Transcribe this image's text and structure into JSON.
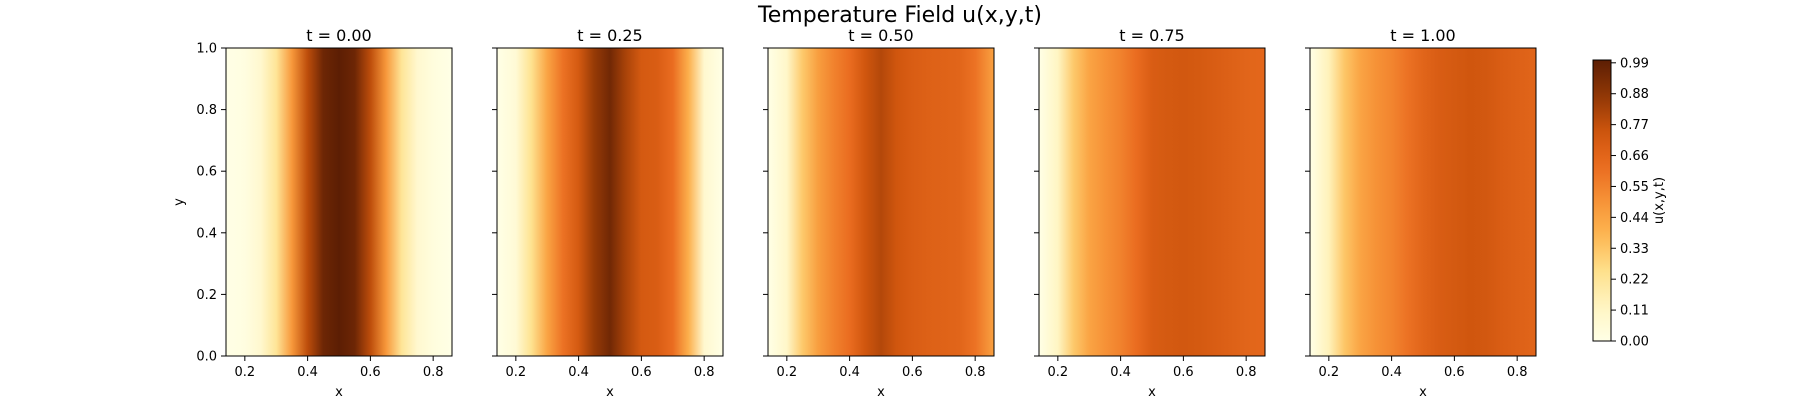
{
  "figure": {
    "title": "Temperature Field u(x,y,t)"
  },
  "chart_data": {
    "type": "heatmap",
    "title": "Temperature Field u(x,y,t)",
    "colormap": "afmhot_r (white → light yellow → orange → dark brown)",
    "x_range": [
      0.14,
      0.86
    ],
    "y_range": [
      0.0,
      1.0
    ],
    "x_ticks": [
      "0.2",
      "0.4",
      "0.6",
      "0.8"
    ],
    "y_ticks": [
      "0.0",
      "0.2",
      "0.4",
      "0.6",
      "0.8",
      "1.0"
    ],
    "xlabel": "x",
    "ylabel": "y",
    "grid": false,
    "note": "field is uniform in y; each panel lists u vs x (x_samples / u_values)",
    "x_samples": [
      0.14,
      0.2,
      0.25,
      0.3,
      0.35,
      0.4,
      0.45,
      0.5,
      0.55,
      0.6,
      0.65,
      0.7,
      0.75,
      0.8,
      0.86
    ],
    "panels": [
      {
        "title": "t = 0.00",
        "t": 0.0,
        "u_values": [
          0.0,
          0.02,
          0.08,
          0.22,
          0.48,
          0.78,
          0.96,
          1.0,
          0.96,
          0.78,
          0.48,
          0.22,
          0.08,
          0.03,
          0.0
        ]
      },
      {
        "title": "t = 0.25",
        "t": 0.25,
        "u_values": [
          0.0,
          0.06,
          0.24,
          0.44,
          0.6,
          0.72,
          0.86,
          0.95,
          0.82,
          0.72,
          0.7,
          0.62,
          0.4,
          0.08,
          0.0
        ]
      },
      {
        "title": "t = 0.50",
        "t": 0.5,
        "u_values": [
          0.0,
          0.1,
          0.32,
          0.46,
          0.55,
          0.62,
          0.74,
          0.8,
          0.74,
          0.7,
          0.68,
          0.67,
          0.66,
          0.6,
          0.45
        ]
      },
      {
        "title": "t = 0.75",
        "t": 0.75,
        "u_values": [
          0.0,
          0.12,
          0.32,
          0.44,
          0.5,
          0.55,
          0.62,
          0.7,
          0.72,
          0.73,
          0.72,
          0.7,
          0.68,
          0.66,
          0.65
        ]
      },
      {
        "title": "t = 1.00",
        "t": 1.0,
        "u_values": [
          0.0,
          0.14,
          0.33,
          0.44,
          0.5,
          0.54,
          0.6,
          0.66,
          0.7,
          0.72,
          0.74,
          0.73,
          0.7,
          0.68,
          0.66
        ]
      }
    ],
    "colorbar": {
      "label": "u(x,y,t)",
      "range": [
        0.0,
        1.0
      ],
      "ticks": [
        "0.00",
        "0.11",
        "0.22",
        "0.33",
        "0.44",
        "0.55",
        "0.66",
        "0.77",
        "0.88",
        "0.99"
      ]
    }
  }
}
